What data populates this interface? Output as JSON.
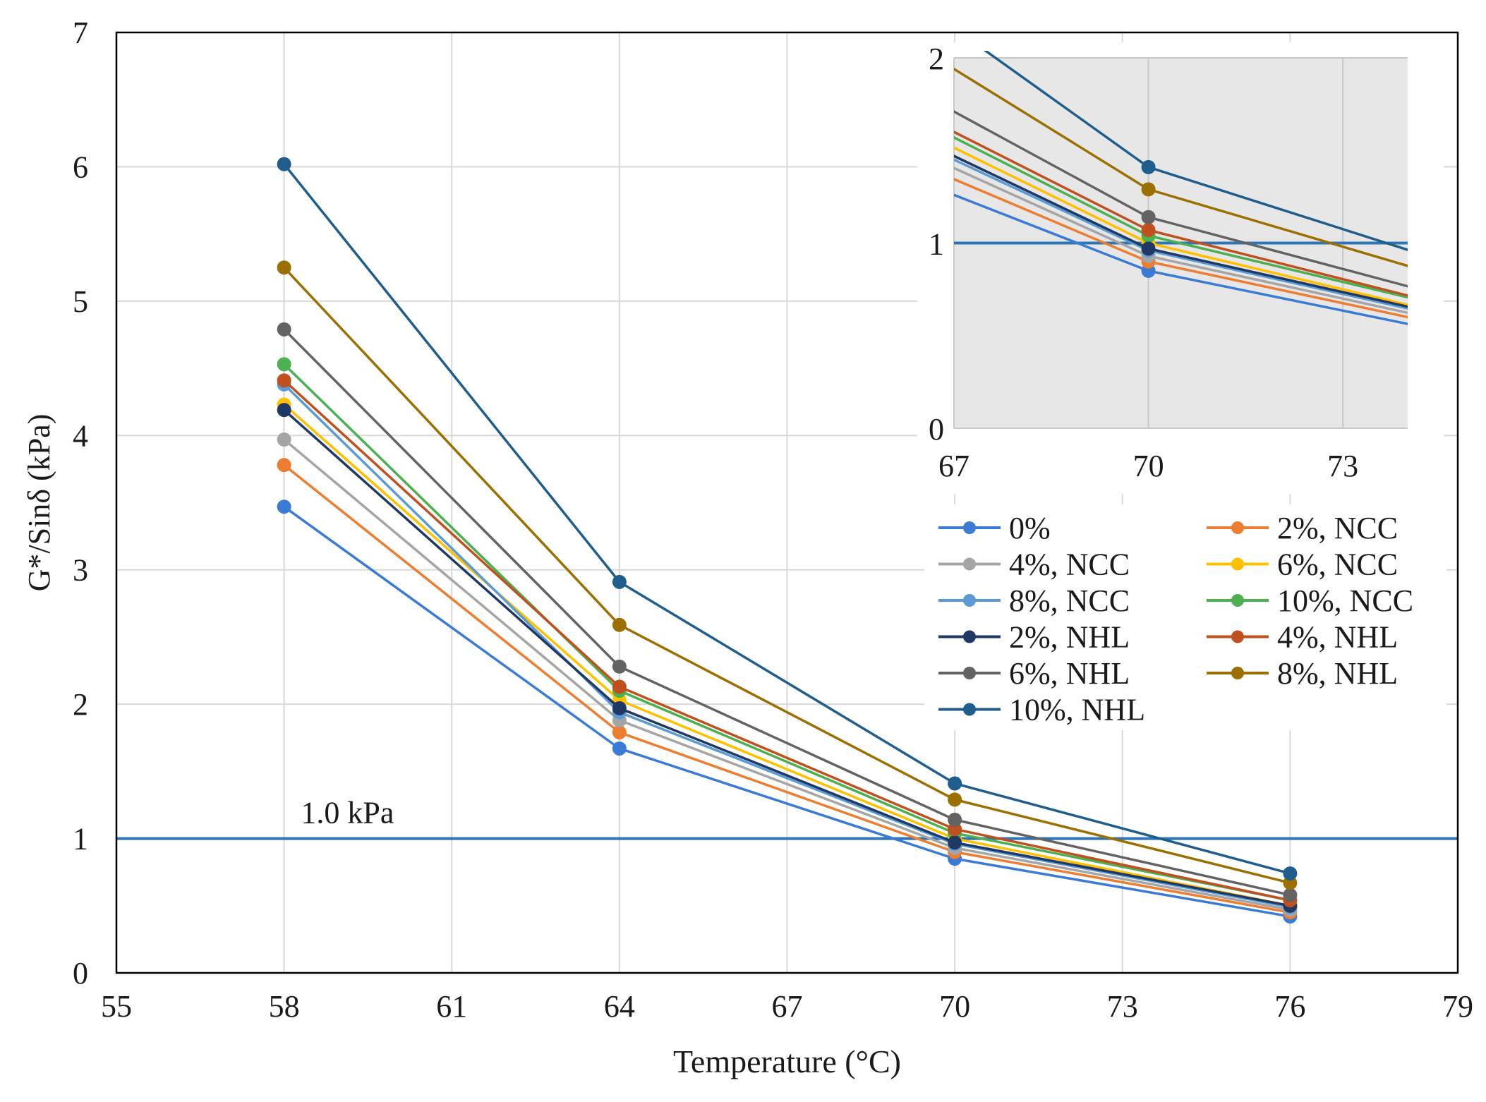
{
  "chart_data": {
    "type": "line",
    "xlabel": "Temperature (°C)",
    "ylabel": "G*/Sinδ (kPa)",
    "xlim": [
      55,
      79
    ],
    "ylim": [
      0,
      7
    ],
    "xticks": [
      "55",
      "58",
      "61",
      "64",
      "67",
      "70",
      "73",
      "76",
      "79"
    ],
    "yticks": [
      "0",
      "1",
      "2",
      "3",
      "4",
      "5",
      "6",
      "7"
    ],
    "grid": true,
    "x": [
      58,
      64,
      70,
      76
    ],
    "reference_line": {
      "y": 1.0,
      "label": "1.0 kPa",
      "color": "#2E75B6"
    },
    "legend_position": "middle-right",
    "series": [
      {
        "name": "0%",
        "color": "#3A7BD5",
        "values": [
          3.47,
          1.67,
          0.85,
          0.42
        ]
      },
      {
        "name": "2%, NCC",
        "color": "#ED7D31",
        "values": [
          3.78,
          1.79,
          0.9,
          0.45
        ]
      },
      {
        "name": "4%, NCC",
        "color": "#A5A5A5",
        "values": [
          3.97,
          1.88,
          0.93,
          0.47
        ]
      },
      {
        "name": "6%, NCC",
        "color": "#FFC000",
        "values": [
          4.23,
          2.03,
          1.0,
          0.5
        ]
      },
      {
        "name": "8%, NCC",
        "color": "#5B9BD5",
        "values": [
          4.38,
          1.94,
          0.96,
          0.49
        ]
      },
      {
        "name": "10%, NCC",
        "color": "#4CAF50",
        "values": [
          4.53,
          2.1,
          1.04,
          0.54
        ]
      },
      {
        "name": "2%, NHL",
        "color": "#1F3864",
        "values": [
          4.19,
          1.97,
          0.97,
          0.5
        ]
      },
      {
        "name": "4%, NHL",
        "color": "#C0501E",
        "values": [
          4.41,
          2.13,
          1.07,
          0.54
        ]
      },
      {
        "name": "6%, NHL",
        "color": "#636363",
        "values": [
          4.79,
          2.28,
          1.14,
          0.58
        ]
      },
      {
        "name": "8%, NHL",
        "color": "#9C7000",
        "values": [
          5.25,
          2.59,
          1.29,
          0.67
        ]
      },
      {
        "name": "10%, NHL",
        "color": "#1F5E8C",
        "values": [
          6.02,
          2.91,
          1.41,
          0.74
        ]
      }
    ],
    "inset": {
      "xlim": [
        67,
        74
      ],
      "ylim": [
        0,
        2
      ],
      "xticks": [
        "67",
        "70",
        "73"
      ],
      "yticks": [
        "0",
        "1",
        "2"
      ],
      "background": "#E7E7E7"
    }
  }
}
